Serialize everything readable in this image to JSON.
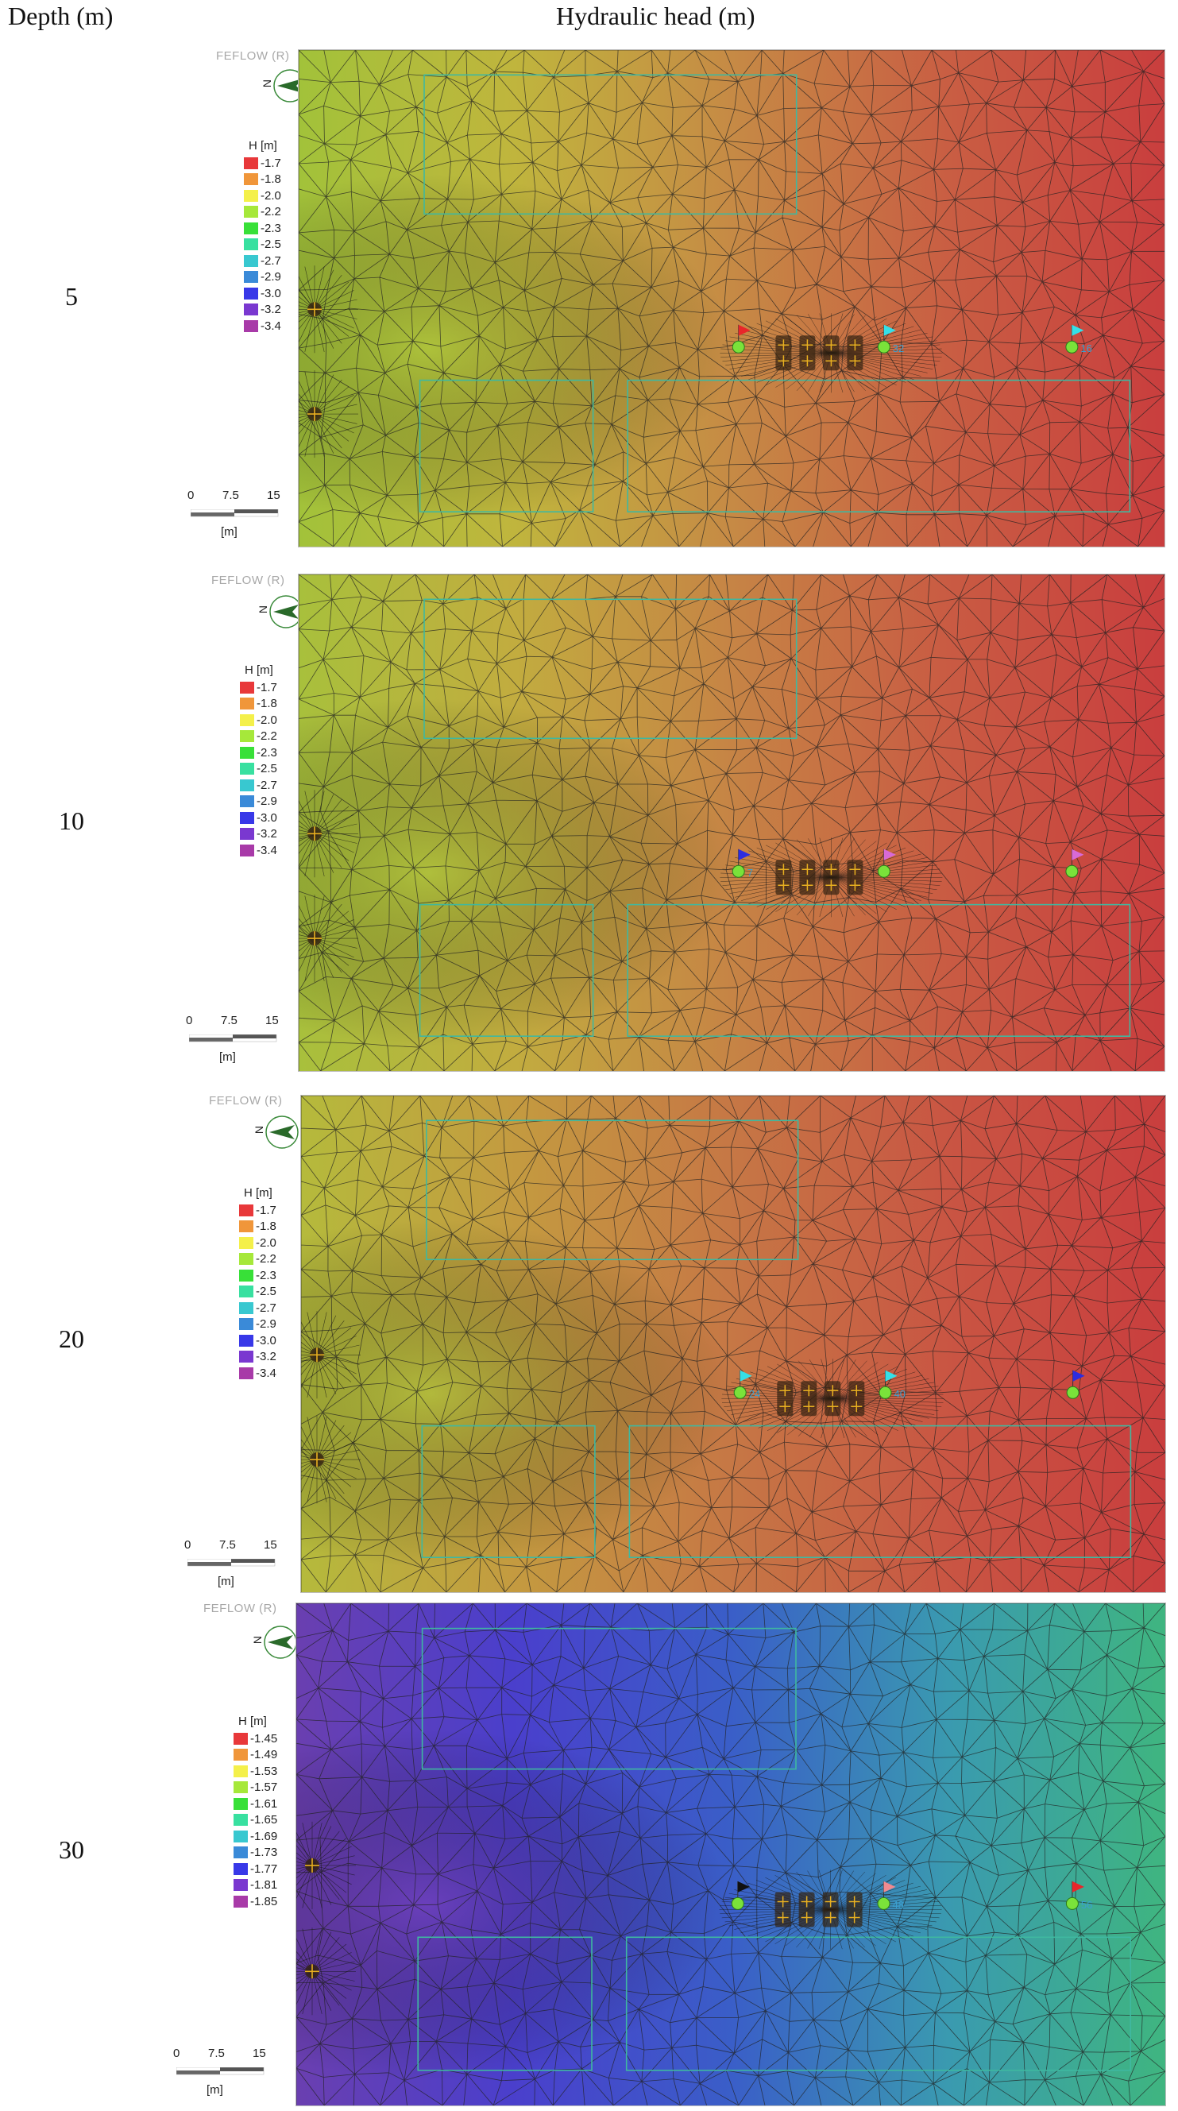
{
  "header": {
    "depth_label": "Depth (m)",
    "title": "Hydraulic head (m)"
  },
  "panels": [
    {
      "depth": "5",
      "software_label": "FEFLOW (R)",
      "north_label": "N",
      "legend_title": "H [m]",
      "legend_items": [
        "-1.7",
        "-1.8",
        "-2.0",
        "-2.2",
        "-2.3",
        "-2.5",
        "-2.7",
        "-2.9",
        "-3.0",
        "-3.2",
        "-3.4"
      ],
      "scale": {
        "ticks": [
          "0",
          "7.5",
          "15"
        ],
        "unit": "[m]"
      },
      "field_colors": [
        "#a2c23a",
        "#c0b53d",
        "#c68a45",
        "#c95e43",
        "#c93e3e"
      ],
      "observation_points": [
        {
          "id": "",
          "flag_color": "#e8262a"
        },
        {
          "id": "32",
          "flag_color": "#34e0e8"
        },
        {
          "id": "16",
          "flag_color": "#34e0e8"
        }
      ]
    },
    {
      "depth": "10",
      "software_label": "FEFLOW (R)",
      "north_label": "N",
      "legend_title": "H [m]",
      "legend_items": [
        "-1.7",
        "-1.8",
        "-2.0",
        "-2.2",
        "-2.3",
        "-2.5",
        "-2.7",
        "-2.9",
        "-3.0",
        "-3.2",
        "-3.4"
      ],
      "scale": {
        "ticks": [
          "0",
          "7.5",
          "15"
        ],
        "unit": "[m]"
      },
      "field_colors": [
        "#a8c03c",
        "#c2ac3f",
        "#c68445",
        "#c95b43",
        "#c93e3e"
      ],
      "observation_points": [
        {
          "id": "7",
          "flag_color": "#2c2ce0"
        },
        {
          "id": "",
          "flag_color": "#d86ad8"
        },
        {
          "id": "",
          "flag_color": "#d86ad8"
        }
      ]
    },
    {
      "depth": "20",
      "software_label": "FEFLOW (R)",
      "north_label": "N",
      "legend_title": "H [m]",
      "legend_items": [
        "-1.7",
        "-1.8",
        "-2.0",
        "-2.2",
        "-2.3",
        "-2.5",
        "-2.7",
        "-2.9",
        "-3.0",
        "-3.2",
        "-3.4"
      ],
      "scale": {
        "ticks": [
          "0",
          "7.5",
          "15"
        ],
        "unit": "[m]"
      },
      "field_colors": [
        "#b5ba3c",
        "#c49a40",
        "#c67745",
        "#c95543",
        "#c93e3e"
      ],
      "observation_points": [
        {
          "id": "24",
          "flag_color": "#34e0e8"
        },
        {
          "id": "40",
          "flag_color": "#34e0e8"
        },
        {
          "id": "",
          "flag_color": "#2c2ce0"
        }
      ]
    },
    {
      "depth": "30",
      "software_label": "FEFLOW (R)",
      "north_label": "N",
      "legend_title": "H [m]",
      "legend_items": [
        "-1.45",
        "-1.49",
        "-1.53",
        "-1.57",
        "-1.61",
        "-1.65",
        "-1.69",
        "-1.73",
        "-1.77",
        "-1.81",
        "-1.85"
      ],
      "scale": {
        "ticks": [
          "0",
          "7.5",
          "15"
        ],
        "unit": "[m]"
      },
      "field_colors": [
        "#6a3fb0",
        "#4a3fcc",
        "#3a5ec8",
        "#3a9ab0",
        "#3fb580"
      ],
      "observation_points": [
        {
          "id": "",
          "flag_color": "#111111"
        },
        {
          "id": "48",
          "flag_color": "#f08a90"
        },
        {
          "id": "56",
          "flag_color": "#e8262a"
        }
      ]
    }
  ],
  "legend_colors": [
    "#e8383a",
    "#f0963a",
    "#f4f04a",
    "#a6e83a",
    "#38e038",
    "#38e0a0",
    "#38c8d0",
    "#3a8ad8",
    "#3838e8",
    "#7a38d0",
    "#a83aa8"
  ],
  "icons": {
    "north_arrow": "north-arrow-icon",
    "observation_flag": "flag-icon",
    "well": "well-cross-icon"
  }
}
